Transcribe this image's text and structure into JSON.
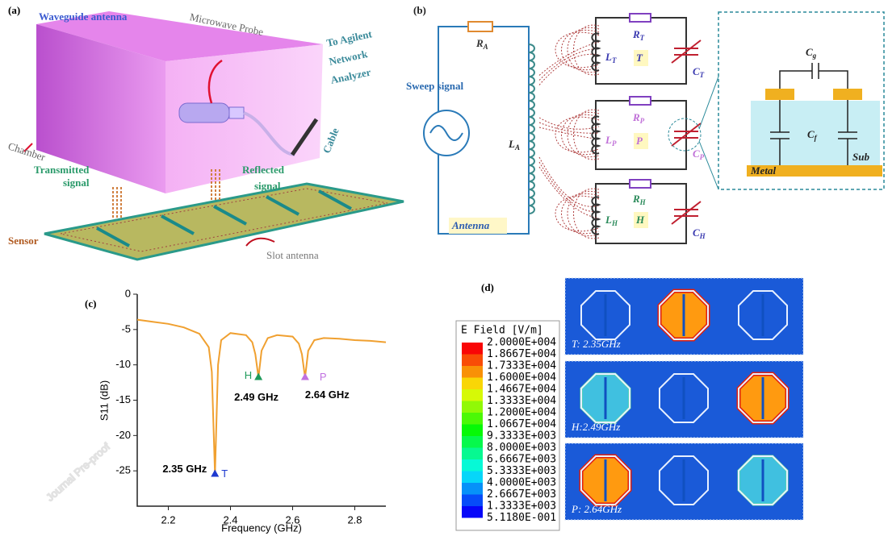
{
  "watermark": "Journal Pre-proof",
  "panel_a": {
    "label": "(a)",
    "waveguide": "Waveguide antenna",
    "probe": "Microwave Probe",
    "analyzer": [
      "To Agilent",
      "Network",
      "Analyzer"
    ],
    "cable": "Cable",
    "chamber": "Chamber",
    "transmitted": [
      "Transmitted",
      "signal"
    ],
    "reflected": [
      "Reflected",
      "signal"
    ],
    "sensor": "Sensor",
    "slot": "Slot antenna"
  },
  "panel_b": {
    "label": "(b)",
    "ra": [
      "R",
      "A"
    ],
    "la": [
      "L",
      "A"
    ],
    "sweep": "Sweep signal",
    "antenna": "Antenna",
    "rt": [
      "R",
      "T"
    ],
    "lt": [
      "L",
      "T"
    ],
    "t": "T",
    "ct": [
      "C",
      "T"
    ],
    "rp": [
      "R",
      "P"
    ],
    "lp": [
      "L",
      "P"
    ],
    "p": "P",
    "cp": [
      "C",
      "P"
    ],
    "rh": [
      "R",
      "H"
    ],
    "lh": [
      "L",
      "H"
    ],
    "h": "H",
    "ch": [
      "C",
      "H"
    ],
    "cg": [
      "C",
      "g"
    ],
    "cf": [
      "C",
      "f"
    ],
    "sub": "Sub",
    "metal": "Metal"
  },
  "panel_d": {
    "label": "(d)",
    "legend_title": "E Field [V/m]",
    "scale": [
      "2.0000E+004",
      "1.8667E+004",
      "1.7333E+004",
      "1.6000E+004",
      "1.4667E+004",
      "1.3333E+004",
      "1.2000E+004",
      "1.0667E+004",
      "9.3333E+003",
      "8.0000E+003",
      "6.6667E+003",
      "5.3333E+003",
      "4.0000E+003",
      "2.6667E+003",
      "1.3333E+003",
      "5.1180E-001"
    ],
    "captions": [
      "T: 2.35GHz",
      "H:2.49GHz",
      "P: 2.64GHz"
    ]
  },
  "chart_data": {
    "type": "line",
    "panel_label": "(c)",
    "xlabel": "Frequency (GHz)",
    "ylabel": "S11 (dB)",
    "color": "#f0a030",
    "x": [
      2.1,
      2.15,
      2.2,
      2.25,
      2.3,
      2.33,
      2.34,
      2.35,
      2.36,
      2.37,
      2.4,
      2.45,
      2.47,
      2.48,
      2.49,
      2.5,
      2.52,
      2.55,
      2.6,
      2.62,
      2.63,
      2.64,
      2.65,
      2.67,
      2.7,
      2.75,
      2.8,
      2.85,
      2.9
    ],
    "values": [
      -3.6,
      -3.9,
      -4.2,
      -4.7,
      -5.6,
      -7.5,
      -11,
      -25.5,
      -10,
      -6.5,
      -5.5,
      -5.8,
      -6.8,
      -8.5,
      -11.8,
      -8,
      -6.2,
      -5.8,
      -6,
      -7,
      -8.5,
      -11.8,
      -8,
      -6.5,
      -6.2,
      -6.3,
      -6.5,
      -6.6,
      -6.8
    ],
    "xlim": [
      2.1,
      2.9
    ],
    "xticks": [
      2.2,
      2.4,
      2.6,
      2.8
    ],
    "ylim": [
      -30,
      0
    ],
    "yticks": [
      0,
      -5,
      -10,
      -15,
      -20,
      -25
    ],
    "annotations": [
      {
        "text": "T",
        "x": 2.35,
        "y": -25.5,
        "color": "#1e3ad0",
        "label": "2.35 GHz"
      },
      {
        "text": "H",
        "x": 2.49,
        "y": -11.8,
        "color": "#1e9a5a",
        "label": "2.49 GHz"
      },
      {
        "text": "P",
        "x": 2.64,
        "y": -11.8,
        "color": "#c070e0",
        "label": "2.64 GHz"
      }
    ]
  }
}
